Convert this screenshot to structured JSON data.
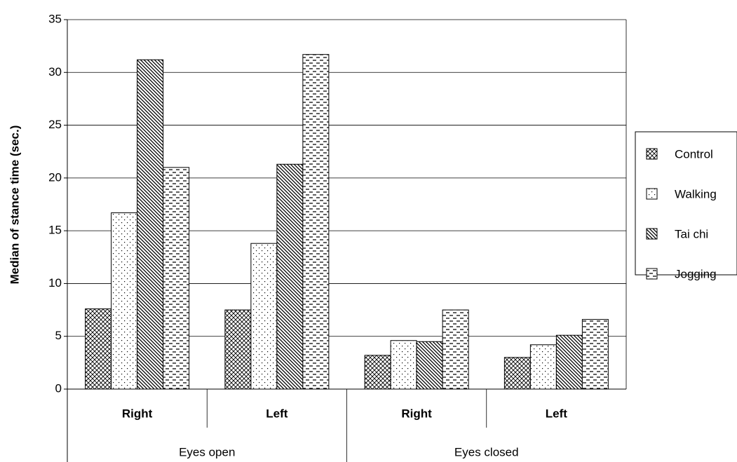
{
  "chart_data": {
    "type": "bar",
    "y_label": "Median of stance time (sec.)",
    "categories": [
      "Right",
      "Left",
      "Right",
      "Left"
    ],
    "groups": [
      "Eyes open",
      "Eyes closed"
    ],
    "series": [
      {
        "name": "Control",
        "color": "#000000",
        "pattern": "crosshatch",
        "values": [
          7.6,
          7.5,
          3.2,
          3.0
        ]
      },
      {
        "name": "Walking",
        "color": "#000000",
        "pattern": "dots",
        "values": [
          16.7,
          13.8,
          4.6,
          4.2
        ]
      },
      {
        "name": "Tai chi",
        "color": "#000000",
        "pattern": "diagonal",
        "values": [
          31.2,
          21.3,
          4.5,
          5.1
        ]
      },
      {
        "name": "Jogging",
        "color": "#000000",
        "pattern": "dashes",
        "values": [
          21.0,
          31.7,
          7.5,
          6.6
        ]
      }
    ],
    "ylim": [
      0,
      35
    ],
    "yticks": [
      0,
      5,
      10,
      15,
      20,
      25,
      30,
      35
    ],
    "grid": true,
    "legend": "right"
  }
}
